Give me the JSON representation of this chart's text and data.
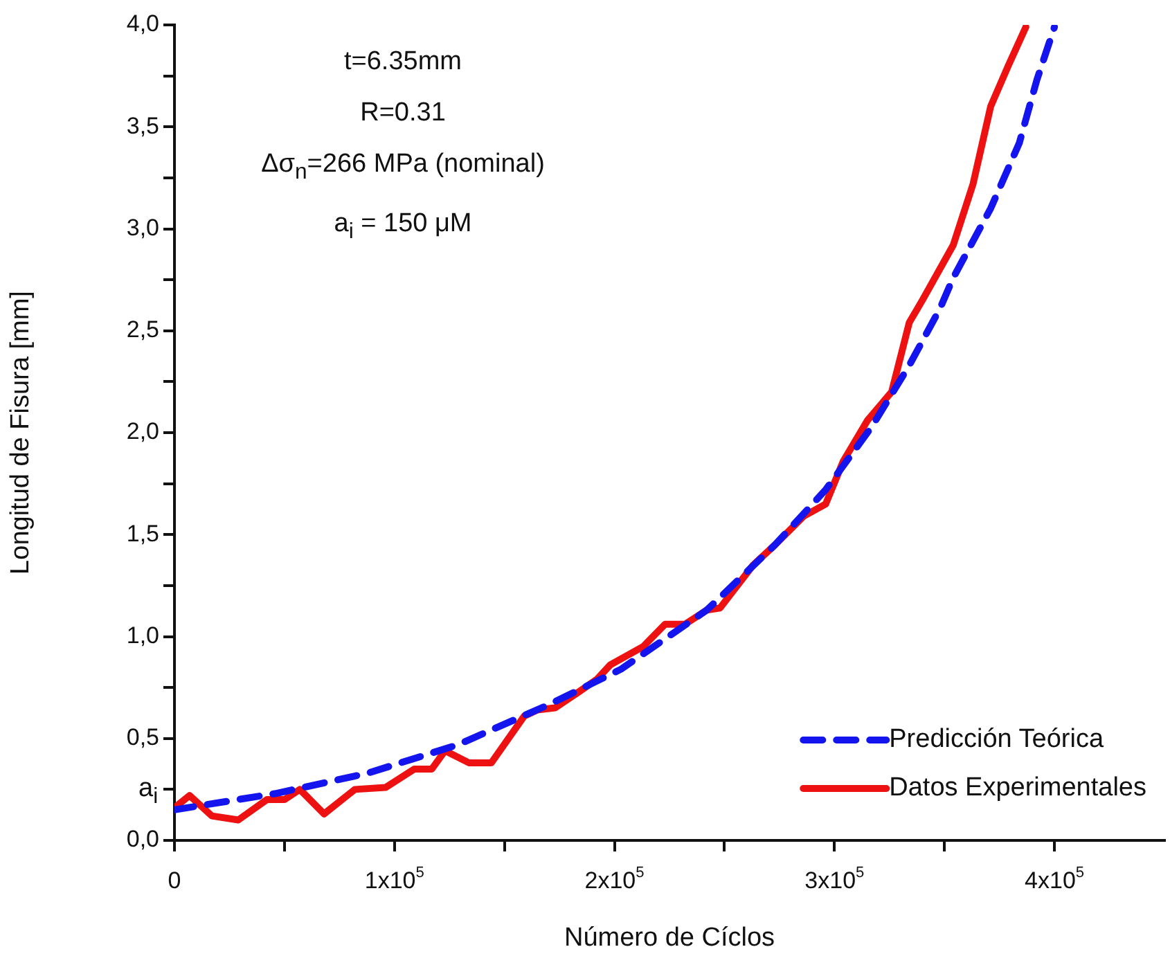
{
  "chart_data": {
    "type": "line",
    "xlabel": "Número de Cíclos",
    "ylabel": "Longitud de Fisura [mm]",
    "xlim": [
      0,
      450000
    ],
    "xticks": [
      {
        "value": 0,
        "label": "0"
      },
      {
        "value": 50000,
        "label": null
      },
      {
        "value": 100000,
        "label": "1x10$^{5}$"
      },
      {
        "value": 150000,
        "label": null
      },
      {
        "value": 200000,
        "label": "2x10$^{5}$"
      },
      {
        "value": 250000,
        "label": null
      },
      {
        "value": 300000,
        "label": "3x10$^{5}$"
      },
      {
        "value": 350000,
        "label": null
      },
      {
        "value": 400000,
        "label": "4x10$^{5}$"
      }
    ],
    "ylim": [
      0,
      4
    ],
    "yticks": [
      {
        "value": 0,
        "label": "0,0"
      },
      {
        "value": 0.25,
        "label": null
      },
      {
        "value": 0.5,
        "label": "0,5"
      },
      {
        "value": 0.75,
        "label": null
      },
      {
        "value": 1,
        "label": "1,0"
      },
      {
        "value": 1.25,
        "label": null
      },
      {
        "value": 1.5,
        "label": "1,5"
      },
      {
        "value": 1.75,
        "label": null
      },
      {
        "value": 2,
        "label": "2,0"
      },
      {
        "value": 2.25,
        "label": null
      },
      {
        "value": 2.5,
        "label": "2,5"
      },
      {
        "value": 2.75,
        "label": null
      },
      {
        "value": 3,
        "label": "3,0"
      },
      {
        "value": 3.25,
        "label": null
      },
      {
        "value": 3.5,
        "label": "3,5"
      },
      {
        "value": 3.75,
        "label": null
      },
      {
        "value": 4,
        "label": "4,0"
      }
    ],
    "grid": false,
    "legend": "bottom right",
    "marker": "none",
    "annotations": [
      "t=6.35mm",
      "R=0.31",
      "Δσ$_{n}$=266 MPa (nominal)",
      "a$_{i}$ = 150 μM",
      "a$_{i}$"
    ],
    "series": [
      {
        "name": "Predicción Teórica",
        "color": "#1414ee",
        "line_style": "dashed",
        "x": [
          0,
          46000,
          88000,
          129000,
          171000,
          203000,
          242000,
          273000,
          296000,
          317000,
          334000,
          348000,
          354000,
          371000,
          384000,
          392000,
          400000
        ],
        "values": [
          0.15,
          0.23,
          0.33,
          0.47,
          0.67,
          0.84,
          1.13,
          1.45,
          1.72,
          2.03,
          2.33,
          2.61,
          2.76,
          3.1,
          3.42,
          3.73,
          3.99
        ]
      },
      {
        "name": "Datos Experimentales",
        "color": "#ee1111",
        "line_style": "solid",
        "x": [
          0,
          6900,
          17000,
          29000,
          42000,
          50000,
          57000,
          68000,
          82000,
          96000,
          109000,
          117000,
          123000,
          134000,
          144000,
          159000,
          165000,
          173000,
          184000,
          192000,
          198000,
          213000,
          223000,
          232000,
          242000,
          248000,
          263000,
          273000,
          286000,
          296000,
          304000,
          315000,
          326000,
          334000,
          340000,
          354000,
          363000,
          371000,
          379000,
          387000
        ],
        "values": [
          0.16,
          0.22,
          0.12,
          0.1,
          0.2,
          0.2,
          0.25,
          0.13,
          0.25,
          0.26,
          0.35,
          0.35,
          0.44,
          0.38,
          0.38,
          0.61,
          0.64,
          0.65,
          0.73,
          0.79,
          0.86,
          0.95,
          1.06,
          1.06,
          1.13,
          1.14,
          1.35,
          1.45,
          1.59,
          1.65,
          1.86,
          2.06,
          2.2,
          2.54,
          2.65,
          2.92,
          3.22,
          3.6,
          3.8,
          3.99
        ]
      }
    ]
  }
}
